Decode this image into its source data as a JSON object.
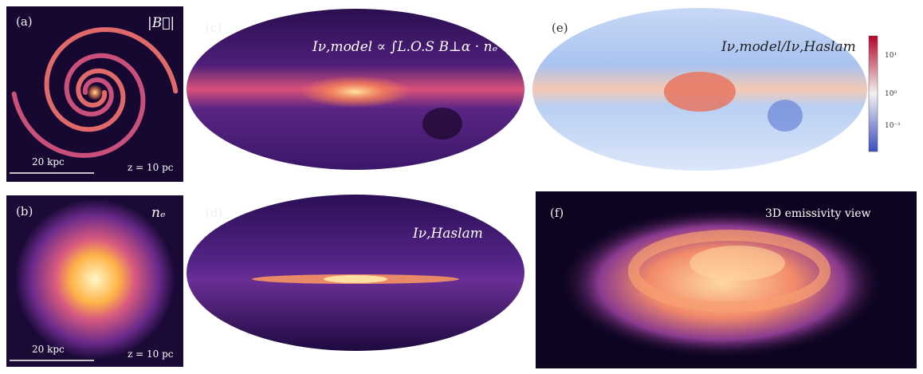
{
  "panels": [
    {
      "label": "(a)",
      "title": "|B⃗|",
      "scale_bar": "20 kpc",
      "depth": "z = 10 pc"
    },
    {
      "label": "(b)",
      "title": "nₑ",
      "scale_bar": "20 kpc",
      "depth": "z = 10 pc"
    },
    {
      "label": "(c)",
      "title": "Iν,model ∝ ∫L.O.S B⊥α · nₑ"
    },
    {
      "label": "(d)",
      "title": "Iν,Haslam"
    },
    {
      "label": "(e)",
      "title": "Iν,model/Iν,Haslam",
      "colorbar_ticks": [
        "10¹",
        "10⁰",
        "10⁻¹"
      ]
    },
    {
      "label": "(f)",
      "title": "3D emissivity view"
    }
  ]
}
